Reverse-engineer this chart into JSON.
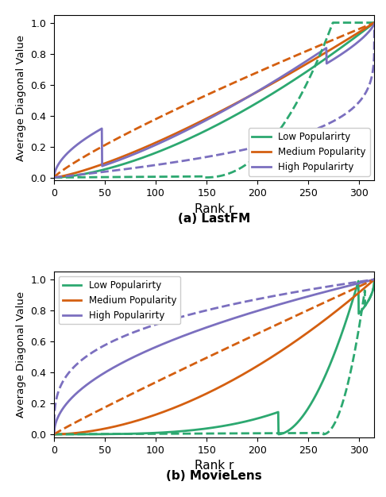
{
  "colors": {
    "low": "#2ca870",
    "medium": "#d45f10",
    "high": "#7b6fbf"
  },
  "legend_labels": [
    "Low Popularirty",
    "Medium Popularity",
    "High Popularirty"
  ],
  "ylabel": "Average Diagonal Value",
  "xlabel": "Rank r",
  "title_a": "(a) LastFM",
  "title_b": "(b) MovieLens",
  "xmax": 315,
  "xlim": [
    0,
    315
  ],
  "ylim": [
    -0.02,
    1.05
  ]
}
